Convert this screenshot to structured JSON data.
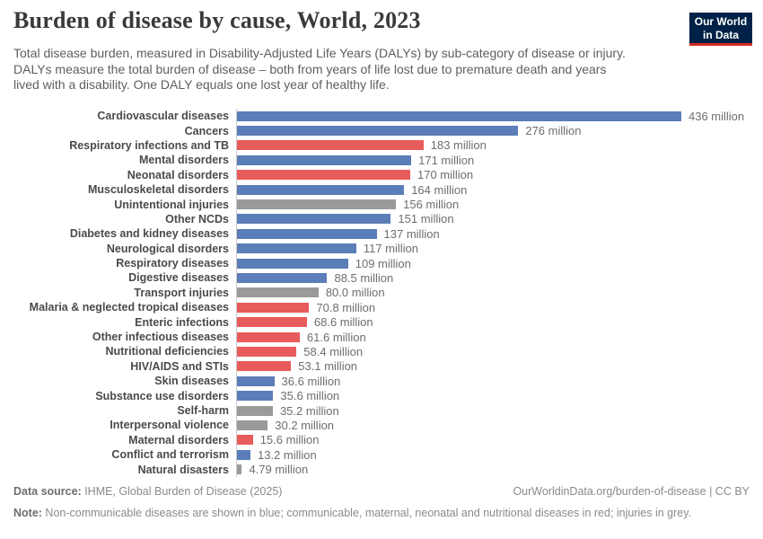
{
  "header": {
    "title": "Burden of disease by cause, World, 2023",
    "subtitle_lines": [
      "Total disease burden, measured in Disability-Adjusted Life Years (DALYs) by sub-category of disease or injury.",
      "DALYs measure the total burden of disease – both from years of life lost due to premature death and years",
      "lived with a disability. One DALY equals one lost year of healthy life."
    ],
    "logo": {
      "line1": "Our World",
      "line2": "in Data"
    }
  },
  "chart_data": {
    "type": "bar",
    "orientation": "horizontal",
    "title": "Burden of disease by cause, World, 2023",
    "unit": "million DALYs",
    "xlim": [
      0,
      436
    ],
    "grid": false,
    "legend_note": "blue = non-communicable; red = communicable, maternal, neonatal and nutritional; grey = injuries",
    "group_colors": {
      "blue": "#5b7db8",
      "red": "#e85b5b",
      "grey": "#9a9a9a"
    },
    "rows": [
      {
        "label": "Cardiovascular diseases",
        "value": 436,
        "value_label": "436 million",
        "group": "blue"
      },
      {
        "label": "Cancers",
        "value": 276,
        "value_label": "276 million",
        "group": "blue"
      },
      {
        "label": "Respiratory infections and TB",
        "value": 183,
        "value_label": "183 million",
        "group": "red"
      },
      {
        "label": "Mental disorders",
        "value": 171,
        "value_label": "171 million",
        "group": "blue"
      },
      {
        "label": "Neonatal disorders",
        "value": 170,
        "value_label": "170 million",
        "group": "red"
      },
      {
        "label": "Musculoskeletal disorders",
        "value": 164,
        "value_label": "164 million",
        "group": "blue"
      },
      {
        "label": "Unintentional injuries",
        "value": 156,
        "value_label": "156 million",
        "group": "grey"
      },
      {
        "label": "Other NCDs",
        "value": 151,
        "value_label": "151 million",
        "group": "blue"
      },
      {
        "label": "Diabetes and kidney diseases",
        "value": 137,
        "value_label": "137 million",
        "group": "blue"
      },
      {
        "label": "Neurological disorders",
        "value": 117,
        "value_label": "117 million",
        "group": "blue"
      },
      {
        "label": "Respiratory diseases",
        "value": 109,
        "value_label": "109 million",
        "group": "blue"
      },
      {
        "label": "Digestive diseases",
        "value": 88.5,
        "value_label": "88.5 million",
        "group": "blue"
      },
      {
        "label": "Transport injuries",
        "value": 80.0,
        "value_label": "80.0 million",
        "group": "grey"
      },
      {
        "label": "Malaria & neglected tropical diseases",
        "value": 70.8,
        "value_label": "70.8 million",
        "group": "red"
      },
      {
        "label": "Enteric infections",
        "value": 68.6,
        "value_label": "68.6 million",
        "group": "red"
      },
      {
        "label": "Other infectious diseases",
        "value": 61.6,
        "value_label": "61.6 million",
        "group": "red"
      },
      {
        "label": "Nutritional deficiencies",
        "value": 58.4,
        "value_label": "58.4 million",
        "group": "red"
      },
      {
        "label": "HIV/AIDS and STIs",
        "value": 53.1,
        "value_label": "53.1 million",
        "group": "red"
      },
      {
        "label": "Skin diseases",
        "value": 36.6,
        "value_label": "36.6 million",
        "group": "blue"
      },
      {
        "label": "Substance use disorders",
        "value": 35.6,
        "value_label": "35.6 million",
        "group": "blue"
      },
      {
        "label": "Self-harm",
        "value": 35.2,
        "value_label": "35.2 million",
        "group": "grey"
      },
      {
        "label": "Interpersonal violence",
        "value": 30.2,
        "value_label": "30.2 million",
        "group": "grey"
      },
      {
        "label": "Maternal disorders",
        "value": 15.6,
        "value_label": "15.6 million",
        "group": "red"
      },
      {
        "label": "Conflict and terrorism",
        "value": 13.2,
        "value_label": "13.2 million",
        "group": "blue"
      },
      {
        "label": "Natural disasters",
        "value": 4.79,
        "value_label": "4.79 million",
        "group": "grey"
      }
    ]
  },
  "footer": {
    "datasource_label": "Data source:",
    "datasource_text": " IHME, Global Burden of Disease (2025)",
    "link_text": "OurWorldinData.org/burden-of-disease | CC BY",
    "note_label": "Note:",
    "note_text": " Non-communicable diseases are shown in blue; communicable, maternal, neonatal and nutritional diseases in red; injuries in grey."
  }
}
